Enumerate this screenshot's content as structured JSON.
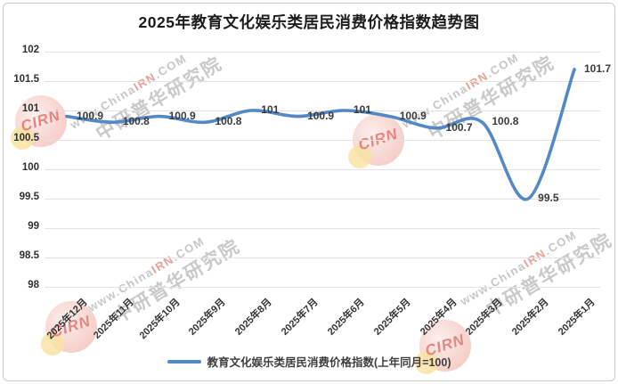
{
  "title": "2025年教育文化娱乐类居民消费价格指数趋势图",
  "legend": {
    "label": "教育文化娱乐类居民消费价格指数(上年同月=100)"
  },
  "watermark": {
    "url_prefix": "www.China",
    "url_mid": "IRN",
    "url_suffix": ".COM",
    "org": "中研普华研究院",
    "logo": "CIRN"
  },
  "chart_data": {
    "type": "line",
    "title": "2025年教育文化娱乐类居民消费价格指数趋势图",
    "categories": [
      "2025年12月",
      "2025年11月",
      "2025年10月",
      "2025年9月",
      "2025年8月",
      "2025年7月",
      "2025年6月",
      "2025年5月",
      "2025年4月",
      "2025年3月",
      "2025年2月",
      "2025年1月"
    ],
    "values": [
      100.9,
      100.8,
      100.9,
      100.8,
      101,
      100.9,
      101,
      100.9,
      100.7,
      100.8,
      99.5,
      101.7
    ],
    "series_name": "教育文化娱乐类居民消费价格指数(上年同月=100)",
    "xlabel": "",
    "ylabel": "",
    "ylim": [
      98,
      102
    ],
    "ytick_step": 0.5,
    "yticks": [
      "102",
      "101.5",
      "101",
      "100.5",
      "100",
      "99.5",
      "99",
      "98.5",
      "98"
    ],
    "grid": true,
    "smooth_line": true,
    "data_labels": true,
    "legend_position": "bottom",
    "line_color": "#5389c6",
    "label_color": "#3b3b3b"
  }
}
